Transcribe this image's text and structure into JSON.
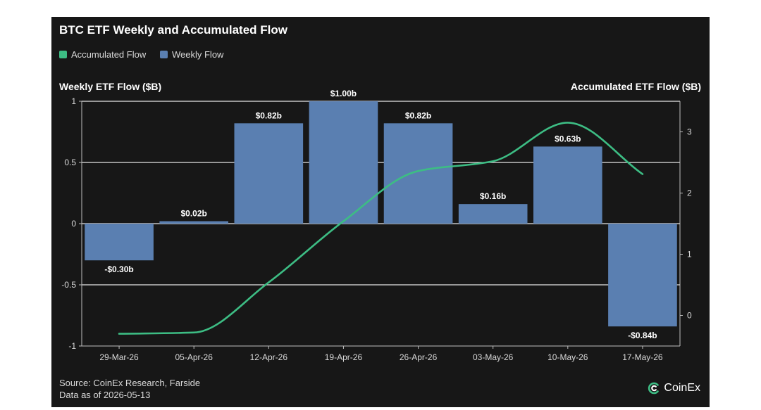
{
  "chart_data": {
    "type": "bar",
    "title": "BTC ETF Weekly and Accumulated Flow",
    "categories": [
      "29-Mar-26",
      "05-Apr-26",
      "12-Apr-26",
      "19-Apr-26",
      "26-Apr-26",
      "03-May-26",
      "10-May-26",
      "17-May-26"
    ],
    "series": [
      {
        "name": "Weekly Flow",
        "type": "bar",
        "axis": "left",
        "color": "#5a7fb1",
        "values": [
          -0.3,
          0.02,
          0.82,
          1.0,
          0.82,
          0.16,
          0.63,
          -0.84
        ],
        "data_labels": [
          "-$0.30b",
          "$0.02b",
          "$0.82b",
          "$1.00b",
          "$0.82b",
          "$0.16b",
          "$0.63b",
          "-$0.84b"
        ]
      },
      {
        "name": "Accumulated Flow",
        "type": "line",
        "axis": "right",
        "color": "#3dbd84",
        "values": [
          -0.3,
          -0.28,
          0.54,
          1.54,
          2.36,
          2.52,
          3.15,
          2.31
        ]
      }
    ],
    "ylabel_left": "Weekly ETF Flow ($B)",
    "ylabel_right": "Accumulated ETF Flow ($B)",
    "ylim_left": [
      -1,
      1
    ],
    "yticks_left": [
      -1,
      -0.5,
      0,
      0.5,
      1
    ],
    "ytick_labels_left": [
      "-1",
      "-0.5",
      "0",
      "0.5",
      "1"
    ],
    "ylim_right": [
      -0.5,
      3.5
    ],
    "yticks_right": [
      0,
      1,
      2,
      3
    ],
    "ytick_labels_right": [
      "0",
      "1",
      "2",
      "3"
    ],
    "grid": "horizontal",
    "legend_position": "top-left"
  },
  "footer": {
    "source": "Source: CoinEx Research, Farside",
    "date": "Data as of 2026-05-13"
  },
  "brand": {
    "name": "CoinEx",
    "icon": "coinex-logo-icon"
  },
  "colors": {
    "background": "#171717",
    "bar": "#5a7fb1",
    "line": "#3dbd84",
    "text": "#ffffff",
    "grid": "#e6e6e6"
  }
}
